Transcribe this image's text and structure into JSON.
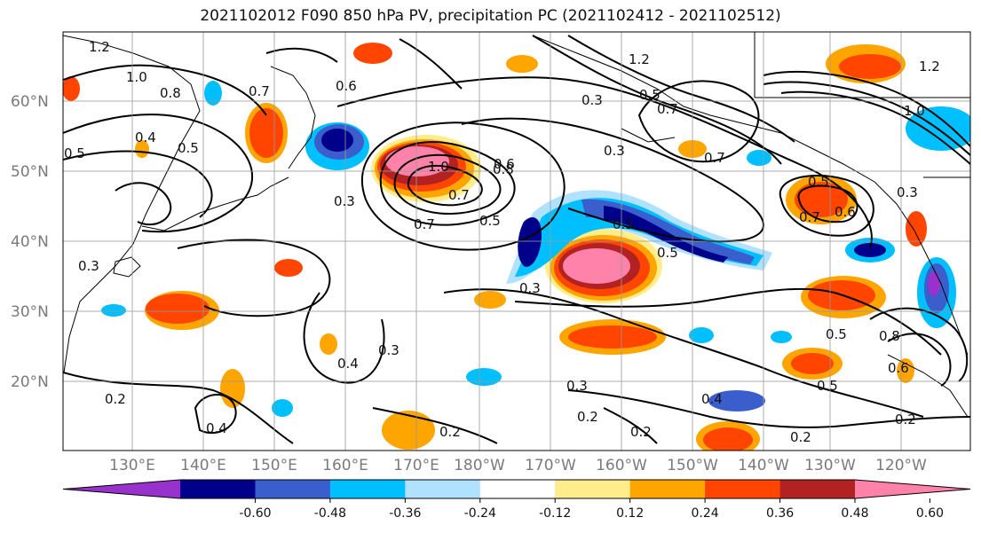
{
  "title": "2021102012 F090 850 hPa PV, precipitation PC (2021102412 - 2021102512)",
  "lat_labels": [
    "60°N",
    "50°N",
    "40°N",
    "30°N",
    "20°N"
  ],
  "lon_labels": [
    "130°E",
    "140°E",
    "150°E",
    "160°E",
    "170°E",
    "180°W",
    "170°W",
    "160°W",
    "150°W",
    "140°W",
    "130°W",
    "120°W"
  ],
  "colorbar": {
    "ticks": [
      "-0.60",
      "-0.48",
      "-0.36",
      "-0.24",
      "-0.12",
      "0.12",
      "0.24",
      "0.36",
      "0.48",
      "0.60"
    ],
    "colors": [
      "#9932cc",
      "#00008b",
      "#3a5fcd",
      "#00bfff",
      "#b0e2ff",
      "#ffffff",
      "#ffec8b",
      "#ffa500",
      "#ff4500",
      "#b22222",
      "#ff82ab"
    ]
  },
  "contour_labels": [
    "1.2",
    "1.0",
    "0.8",
    "0.7",
    "0.6",
    "0.5",
    "0.4",
    "0.3",
    "0.2",
    "0.5",
    "0.4",
    "0.3",
    "0.7",
    "0.5",
    "0.3",
    "0.8",
    "0.7",
    "0.5",
    "0.3",
    "1.0",
    "0.6",
    "0.7",
    "0.5",
    "0.3",
    "0.2",
    "0.2",
    "0.2",
    "0.2",
    "0.4",
    "0.3",
    "0.4",
    "0.5",
    "0.8",
    "0.5",
    "0.6",
    "0.3",
    "1.2",
    "1.0",
    "0.7",
    "0.6",
    "0.5",
    "1.2",
    "0.3",
    "0.7",
    "0.5",
    "0.2"
  ]
}
